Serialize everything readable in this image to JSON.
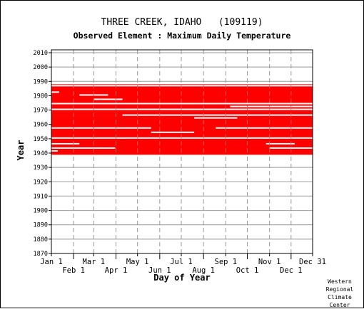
{
  "chart_data": {
    "type": "heatmap",
    "title": "THREE CREEK, IDAHO   (109119)",
    "subtitle": "Observed Element : Maximum Daily Temperature",
    "xlabel": "Day of Year",
    "ylabel": "Year",
    "xlim": [
      1,
      365
    ],
    "ylim": [
      1870,
      2012
    ],
    "x_ticks_top_row": [
      {
        "label": "Jan 1",
        "day": 1
      },
      {
        "label": "Mar 1",
        "day": 60
      },
      {
        "label": "May 1",
        "day": 121
      },
      {
        "label": "Jul 1",
        "day": 182
      },
      {
        "label": "Sep 1",
        "day": 244
      },
      {
        "label": "Nov 1",
        "day": 305
      },
      {
        "label": "Dec 31",
        "day": 365
      }
    ],
    "x_ticks_bottom_row": [
      {
        "label": "Feb 1",
        "day": 32
      },
      {
        "label": "Apr 1",
        "day": 91
      },
      {
        "label": "Jun 1",
        "day": 152
      },
      {
        "label": "Aug 1",
        "day": 213
      },
      {
        "label": "Oct 1",
        "day": 274
      },
      {
        "label": "Dec 1",
        "day": 335
      }
    ],
    "y_ticks": [
      1870,
      1880,
      1890,
      1900,
      1910,
      1920,
      1930,
      1940,
      1950,
      1960,
      1970,
      1980,
      1990,
      2000,
      2010
    ],
    "data_color": "#ff0000",
    "grid": true,
    "record_start_year": 1939,
    "record_end_year": 1987,
    "missing_rows": [
      {
        "year": 1986.5,
        "from_day": 1,
        "to_day": 365
      },
      {
        "year": 1982,
        "from_day": 1,
        "to_day": 12
      },
      {
        "year": 1980,
        "from_day": 40,
        "to_day": 80
      },
      {
        "year": 1977,
        "from_day": 60,
        "to_day": 100
      },
      {
        "year": 1974,
        "from_day": 1,
        "to_day": 365
      },
      {
        "year": 1972,
        "from_day": 250,
        "to_day": 365
      },
      {
        "year": 1970,
        "from_day": 1,
        "to_day": 365
      },
      {
        "year": 1966,
        "from_day": 100,
        "to_day": 365
      },
      {
        "year": 1964,
        "from_day": 200,
        "to_day": 260
      },
      {
        "year": 1957,
        "from_day": 1,
        "to_day": 140
      },
      {
        "year": 1957,
        "from_day": 230,
        "to_day": 365
      },
      {
        "year": 1954,
        "from_day": 140,
        "to_day": 200
      },
      {
        "year": 1950,
        "from_day": 1,
        "to_day": 365
      },
      {
        "year": 1946,
        "from_day": 1,
        "to_day": 40
      },
      {
        "year": 1946,
        "from_day": 300,
        "to_day": 340
      },
      {
        "year": 1943,
        "from_day": 1,
        "to_day": 90
      },
      {
        "year": 1943,
        "from_day": 305,
        "to_day": 365
      },
      {
        "year": 1941,
        "from_day": 1,
        "to_day": 10
      }
    ]
  },
  "credit": [
    "Western",
    "Regional",
    "Climate",
    "Center"
  ]
}
